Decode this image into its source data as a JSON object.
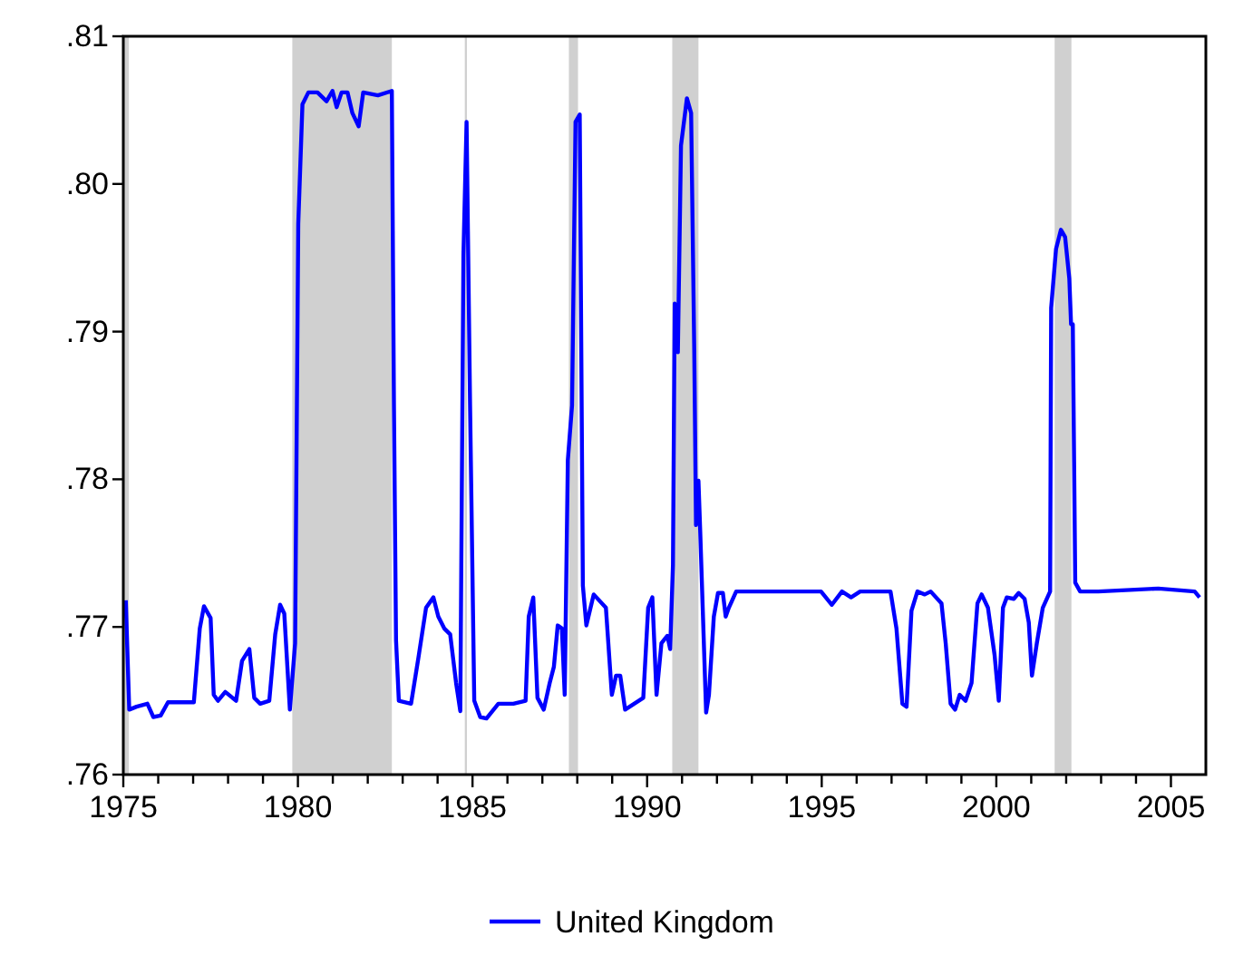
{
  "chart_data": {
    "type": "line",
    "xlim": [
      1975,
      2006
    ],
    "ylim": [
      0.76,
      0.81
    ],
    "xticks": [
      1975,
      {
        "value": 1976,
        "label": null
      },
      {
        "value": 1977,
        "label": null
      },
      {
        "value": 1978,
        "label": null
      },
      {
        "value": 1979,
        "label": null
      },
      1980,
      {
        "value": 1981,
        "label": null
      },
      {
        "value": 1982,
        "label": null
      },
      {
        "value": 1983,
        "label": null
      },
      {
        "value": 1984,
        "label": null
      },
      1985,
      {
        "value": 1986,
        "label": null
      },
      {
        "value": 1987,
        "label": null
      },
      {
        "value": 1988,
        "label": null
      },
      {
        "value": 1989,
        "label": null
      },
      1990,
      {
        "value": 1991,
        "label": null
      },
      {
        "value": 1992,
        "label": null
      },
      {
        "value": 1993,
        "label": null
      },
      {
        "value": 1994,
        "label": null
      },
      1995,
      {
        "value": 1996,
        "label": null
      },
      {
        "value": 1997,
        "label": null
      },
      {
        "value": 1998,
        "label": null
      },
      {
        "value": 1999,
        "label": null
      },
      2000,
      {
        "value": 2001,
        "label": null
      },
      {
        "value": 2002,
        "label": null
      },
      {
        "value": 2003,
        "label": null
      },
      {
        "value": 2004,
        "label": null
      },
      2005
    ],
    "yticks": [
      {
        "value": 0.76,
        "label": ".76"
      },
      {
        "value": 0.77,
        "label": ".77"
      },
      {
        "value": 0.78,
        "label": ".78"
      },
      {
        "value": 0.79,
        "label": ".79"
      },
      {
        "value": 0.8,
        "label": ".80"
      },
      {
        "value": 0.81,
        "label": ".81"
      }
    ],
    "grid": false,
    "legend": "bottom",
    "line_style": "solid",
    "marker": "none",
    "bands": [
      {
        "axis": "x",
        "from": 1975,
        "to": 1975.16,
        "color": "#d0d0d0"
      },
      {
        "axis": "x",
        "from": 1979.84,
        "to": 1982.69,
        "color": "#d0d0d0"
      },
      {
        "axis": "x",
        "from": 1984.78,
        "to": 1984.84,
        "color": "#d0d0d0"
      },
      {
        "axis": "x",
        "from": 1987.76,
        "to": 1988.02,
        "color": "#d0d0d0"
      },
      {
        "axis": "x",
        "from": 1990.72,
        "to": 1991.47,
        "color": "#d0d0d0"
      },
      {
        "axis": "x",
        "from": 2001.67,
        "to": 2002.15,
        "color": "#d0d0d0"
      }
    ],
    "series": [
      {
        "name": "United Kingdom",
        "color": "#0000ff",
        "x": [
          1975.07,
          1975.17,
          1975.38,
          1975.69,
          1975.86,
          1976.07,
          1976.28,
          1977.02,
          1977.19,
          1977.31,
          1977.5,
          1977.59,
          1977.71,
          1977.92,
          1978.23,
          1978.4,
          1978.61,
          1978.75,
          1978.92,
          1979.18,
          1979.35,
          1979.49,
          1979.61,
          1979.77,
          1979.92,
          1980.01,
          1980.13,
          1980.3,
          1980.56,
          1980.82,
          1980.99,
          1981.11,
          1981.25,
          1981.42,
          1981.56,
          1981.74,
          1981.87,
          1982.29,
          1982.69,
          1982.75,
          1982.81,
          1982.89,
          1983.24,
          1983.45,
          1983.67,
          1983.88,
          1984.02,
          1984.19,
          1984.36,
          1984.53,
          1984.65,
          1984.74,
          1984.83,
          1984.93,
          1985.05,
          1985.22,
          1985.4,
          1985.74,
          1986.17,
          1986.52,
          1986.61,
          1986.74,
          1986.86,
          1987.04,
          1987.21,
          1987.33,
          1987.44,
          1987.56,
          1987.64,
          1987.73,
          1987.85,
          1987.95,
          1988.07,
          1988.16,
          1988.26,
          1988.47,
          1988.82,
          1988.99,
          1989.11,
          1989.23,
          1989.37,
          1989.63,
          1989.89,
          1990.03,
          1990.15,
          1990.27,
          1990.41,
          1990.58,
          1990.66,
          1990.74,
          1990.79,
          1990.88,
          1990.97,
          1991.14,
          1991.26,
          1991.35,
          1991.4,
          1991.47,
          1991.52,
          1991.69,
          1991.77,
          1991.91,
          1992.03,
          1992.17,
          1992.25,
          1992.34,
          1992.55,
          1993.41,
          1994.27,
          1994.98,
          1995.29,
          1995.58,
          1995.84,
          1996.1,
          1996.97,
          1997.14,
          1997.31,
          1997.43,
          1997.57,
          1997.74,
          1997.95,
          1998.12,
          1998.43,
          1998.55,
          1998.69,
          1998.82,
          1998.95,
          1999.12,
          1999.29,
          1999.46,
          1999.58,
          1999.76,
          1999.95,
          2000.07,
          2000.19,
          2000.3,
          2000.5,
          2000.64,
          2000.81,
          2000.93,
          2001.02,
          2001.16,
          2001.33,
          2001.54,
          2001.57,
          2001.71,
          2001.85,
          2001.97,
          2002.09,
          2002.14,
          2002.19,
          2002.26,
          2002.4,
          2002.92,
          2004.64,
          2005.68,
          2005.82
        ],
        "values": [
          0.7718,
          0.7644,
          0.7646,
          0.7648,
          0.7639,
          0.764,
          0.7649,
          0.7649,
          0.7699,
          0.7714,
          0.7706,
          0.7654,
          0.765,
          0.7656,
          0.765,
          0.7677,
          0.7685,
          0.7652,
          0.7648,
          0.765,
          0.7695,
          0.7715,
          0.7709,
          0.7644,
          0.7689,
          0.7973,
          0.8054,
          0.8062,
          0.8062,
          0.8056,
          0.8063,
          0.8052,
          0.8062,
          0.8062,
          0.8048,
          0.8039,
          0.8062,
          0.806,
          0.8063,
          0.785,
          0.7691,
          0.765,
          0.7648,
          0.7679,
          0.7713,
          0.772,
          0.7707,
          0.7699,
          0.7695,
          0.7662,
          0.7643,
          0.7952,
          0.8042,
          0.785,
          0.765,
          0.7639,
          0.7638,
          0.7648,
          0.7648,
          0.765,
          0.7707,
          0.772,
          0.7652,
          0.7644,
          0.7662,
          0.7673,
          0.7701,
          0.7699,
          0.7654,
          0.7813,
          0.785,
          0.8042,
          0.8047,
          0.7728,
          0.7701,
          0.7722,
          0.7713,
          0.7654,
          0.7667,
          0.7667,
          0.7644,
          0.7648,
          0.7652,
          0.7713,
          0.772,
          0.7654,
          0.7689,
          0.7694,
          0.7685,
          0.7742,
          0.7919,
          0.7886,
          0.8026,
          0.8058,
          0.8048,
          0.7887,
          0.7769,
          0.7799,
          0.7765,
          0.7642,
          0.7654,
          0.7707,
          0.7723,
          0.7723,
          0.7707,
          0.7713,
          0.7724,
          0.7724,
          0.7724,
          0.7724,
          0.7715,
          0.7724,
          0.772,
          0.7724,
          0.7724,
          0.7699,
          0.7648,
          0.7646,
          0.7711,
          0.7724,
          0.7722,
          0.7724,
          0.7716,
          0.7689,
          0.7648,
          0.7644,
          0.7654,
          0.765,
          0.7662,
          0.7716,
          0.7722,
          0.7713,
          0.7681,
          0.765,
          0.7713,
          0.772,
          0.7719,
          0.7723,
          0.7719,
          0.7703,
          0.7667,
          0.7689,
          0.7713,
          0.7724,
          0.7916,
          0.7956,
          0.7969,
          0.7964,
          0.7936,
          0.7905,
          0.7905,
          0.773,
          0.7724,
          0.7724,
          0.7726,
          0.7724,
          0.772
        ]
      }
    ]
  }
}
